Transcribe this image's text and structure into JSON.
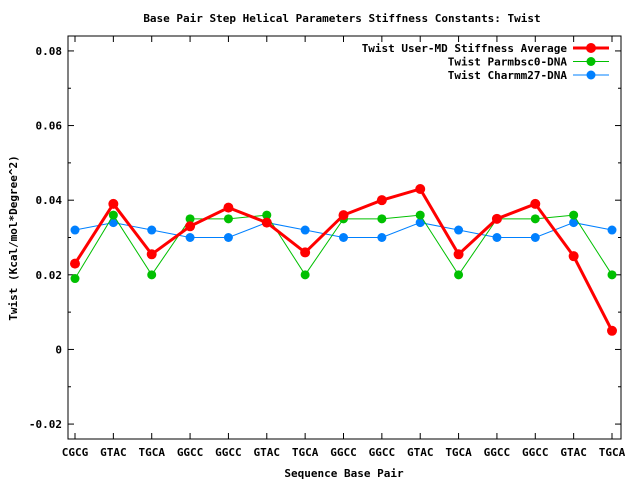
{
  "chart_data": {
    "type": "line",
    "title": "Base Pair Step Helical Parameters Stiffness Constants: Twist",
    "xlabel": "Sequence Base Pair",
    "ylabel": "Twist (Kcal/mol*Degree^2)",
    "ylim": [
      -0.024,
      0.084
    ],
    "yticks": [
      -0.02,
      0,
      0.02,
      0.04,
      0.06,
      0.08
    ],
    "ytick_labels": [
      "-0.02",
      "0",
      "0.02",
      "0.04",
      "0.06",
      "0.08"
    ],
    "categories": [
      "CGCG",
      "GTAC",
      "TGCA",
      "GGCC",
      "GGCC",
      "GTAC",
      "TGCA",
      "GGCC",
      "GGCC",
      "GTAC",
      "TGCA",
      "GGCC",
      "GGCC",
      "GTAC",
      "TGCA"
    ],
    "legend_position": "top-right",
    "grid": false,
    "series": [
      {
        "name": "Twist User-MD Stiffness Average",
        "color": "#ff0000",
        "values": [
          0.023,
          0.039,
          0.0255,
          0.033,
          0.038,
          0.034,
          0.026,
          0.036,
          0.04,
          0.043,
          0.0255,
          0.035,
          0.039,
          0.025,
          0.005
        ]
      },
      {
        "name": "Twist Parmbsc0-DNA",
        "color": "#00c000",
        "values": [
          0.019,
          0.036,
          0.02,
          0.035,
          0.035,
          0.036,
          0.02,
          0.035,
          0.035,
          0.036,
          0.02,
          0.035,
          0.035,
          0.036,
          0.02
        ]
      },
      {
        "name": "Twist Charmm27-DNA",
        "color": "#0080ff",
        "values": [
          0.032,
          0.034,
          0.032,
          0.03,
          0.03,
          0.034,
          0.032,
          0.03,
          0.03,
          0.034,
          0.032,
          0.03,
          0.03,
          0.034,
          0.032
        ]
      }
    ]
  }
}
